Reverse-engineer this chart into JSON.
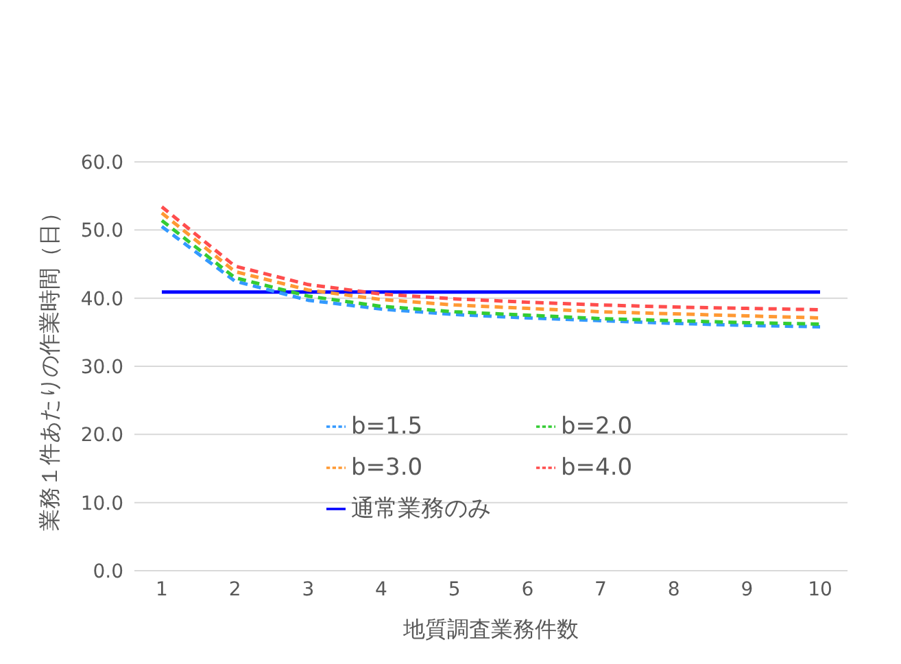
{
  "chart_data": {
    "type": "line",
    "xlabel": "地質調査業務件数",
    "ylabel": "業務１件あたりの作業時間（日）",
    "categories": [
      "1",
      "2",
      "3",
      "4",
      "5",
      "6",
      "7",
      "8",
      "9",
      "10"
    ],
    "series": [
      {
        "name": "通常業務のみ",
        "color": "#0000ff",
        "line_style": "solid",
        "values": [
          40.9,
          40.9,
          40.9,
          40.9,
          40.9,
          40.9,
          40.9,
          40.9,
          40.9,
          40.9
        ]
      },
      {
        "name": "b=1.5",
        "color": "#3399ff",
        "line_style": "dashed",
        "values": [
          50.5,
          42.5,
          39.7,
          38.4,
          37.6,
          37.1,
          36.7,
          36.3,
          36.0,
          35.8
        ]
      },
      {
        "name": "b=2.0",
        "color": "#33cc33",
        "line_style": "dashed",
        "values": [
          51.4,
          43.0,
          40.3,
          38.8,
          38.0,
          37.5,
          37.0,
          36.7,
          36.4,
          36.2
        ]
      },
      {
        "name": "b=3.0",
        "color": "#ff9933",
        "line_style": "dashed",
        "values": [
          52.5,
          43.9,
          41.2,
          39.8,
          39.0,
          38.5,
          38.0,
          37.7,
          37.4,
          37.1
        ]
      },
      {
        "name": "b=4.0",
        "color": "#ff4d4d",
        "line_style": "dashed",
        "values": [
          53.4,
          44.7,
          42.0,
          40.6,
          39.9,
          39.4,
          39.0,
          38.7,
          38.5,
          38.3
        ]
      }
    ],
    "ylim": [
      0,
      60
    ],
    "yticks": [
      {
        "value": 0,
        "label": "0.0"
      },
      {
        "value": 10,
        "label": "10.0"
      },
      {
        "value": 20,
        "label": "20.0"
      },
      {
        "value": 30,
        "label": "30.0"
      },
      {
        "value": 40,
        "label": "40.0"
      },
      {
        "value": 50,
        "label": "50.0"
      },
      {
        "value": 60,
        "label": "60.0"
      }
    ],
    "grid": "y",
    "legend": "bottom",
    "marker": "none"
  }
}
